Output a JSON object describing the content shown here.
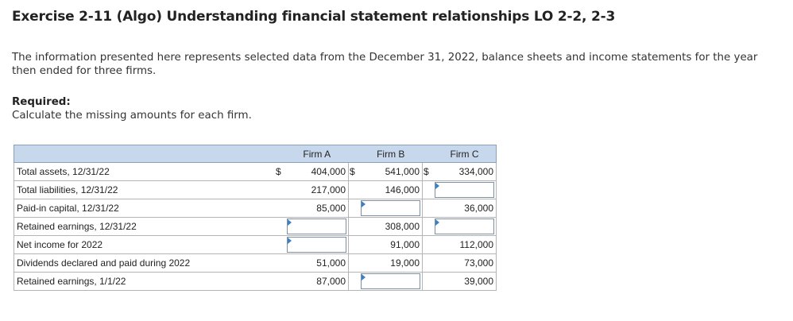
{
  "title": "Exercise 2-11 (Algo) Understanding financial statement relationships LO 2-2, 2-3",
  "intro": "The information presented here represents selected data from the December 31, 2022, balance sheets and income statements for the year then ended for three firms.",
  "required": {
    "label": "Required:",
    "text": "Calculate the missing amounts for each firm."
  },
  "table": {
    "columns": [
      "Firm A",
      "Firm B",
      "Firm C"
    ],
    "currency_symbol": "$",
    "rows": [
      {
        "label": "Total assets, 12/31/22",
        "values": [
          "404,000",
          "541,000",
          "334,000"
        ],
        "inputs": [
          false,
          false,
          false
        ],
        "currency": [
          true,
          true,
          true
        ]
      },
      {
        "label": "Total liabilities, 12/31/22",
        "values": [
          "217,000",
          "146,000",
          ""
        ],
        "inputs": [
          false,
          false,
          true
        ],
        "currency": [
          false,
          false,
          false
        ]
      },
      {
        "label": "Paid-in capital, 12/31/22",
        "values": [
          "85,000",
          "",
          "36,000"
        ],
        "inputs": [
          false,
          true,
          false
        ],
        "currency": [
          false,
          false,
          false
        ]
      },
      {
        "label": "Retained earnings, 12/31/22",
        "values": [
          "",
          "308,000",
          ""
        ],
        "inputs": [
          true,
          false,
          true
        ],
        "currency": [
          false,
          false,
          false
        ]
      },
      {
        "label": "Net income for 2022",
        "values": [
          "",
          "91,000",
          "112,000"
        ],
        "inputs": [
          true,
          false,
          false
        ],
        "currency": [
          false,
          false,
          false
        ]
      },
      {
        "label": "Dividends declared and paid during 2022",
        "values": [
          "51,000",
          "19,000",
          "73,000"
        ],
        "inputs": [
          false,
          false,
          false
        ],
        "currency": [
          false,
          false,
          false
        ]
      },
      {
        "label": "Retained earnings, 1/1/22",
        "values": [
          "87,000",
          "",
          "39,000"
        ],
        "inputs": [
          false,
          true,
          false
        ],
        "currency": [
          false,
          false,
          false
        ]
      }
    ]
  }
}
